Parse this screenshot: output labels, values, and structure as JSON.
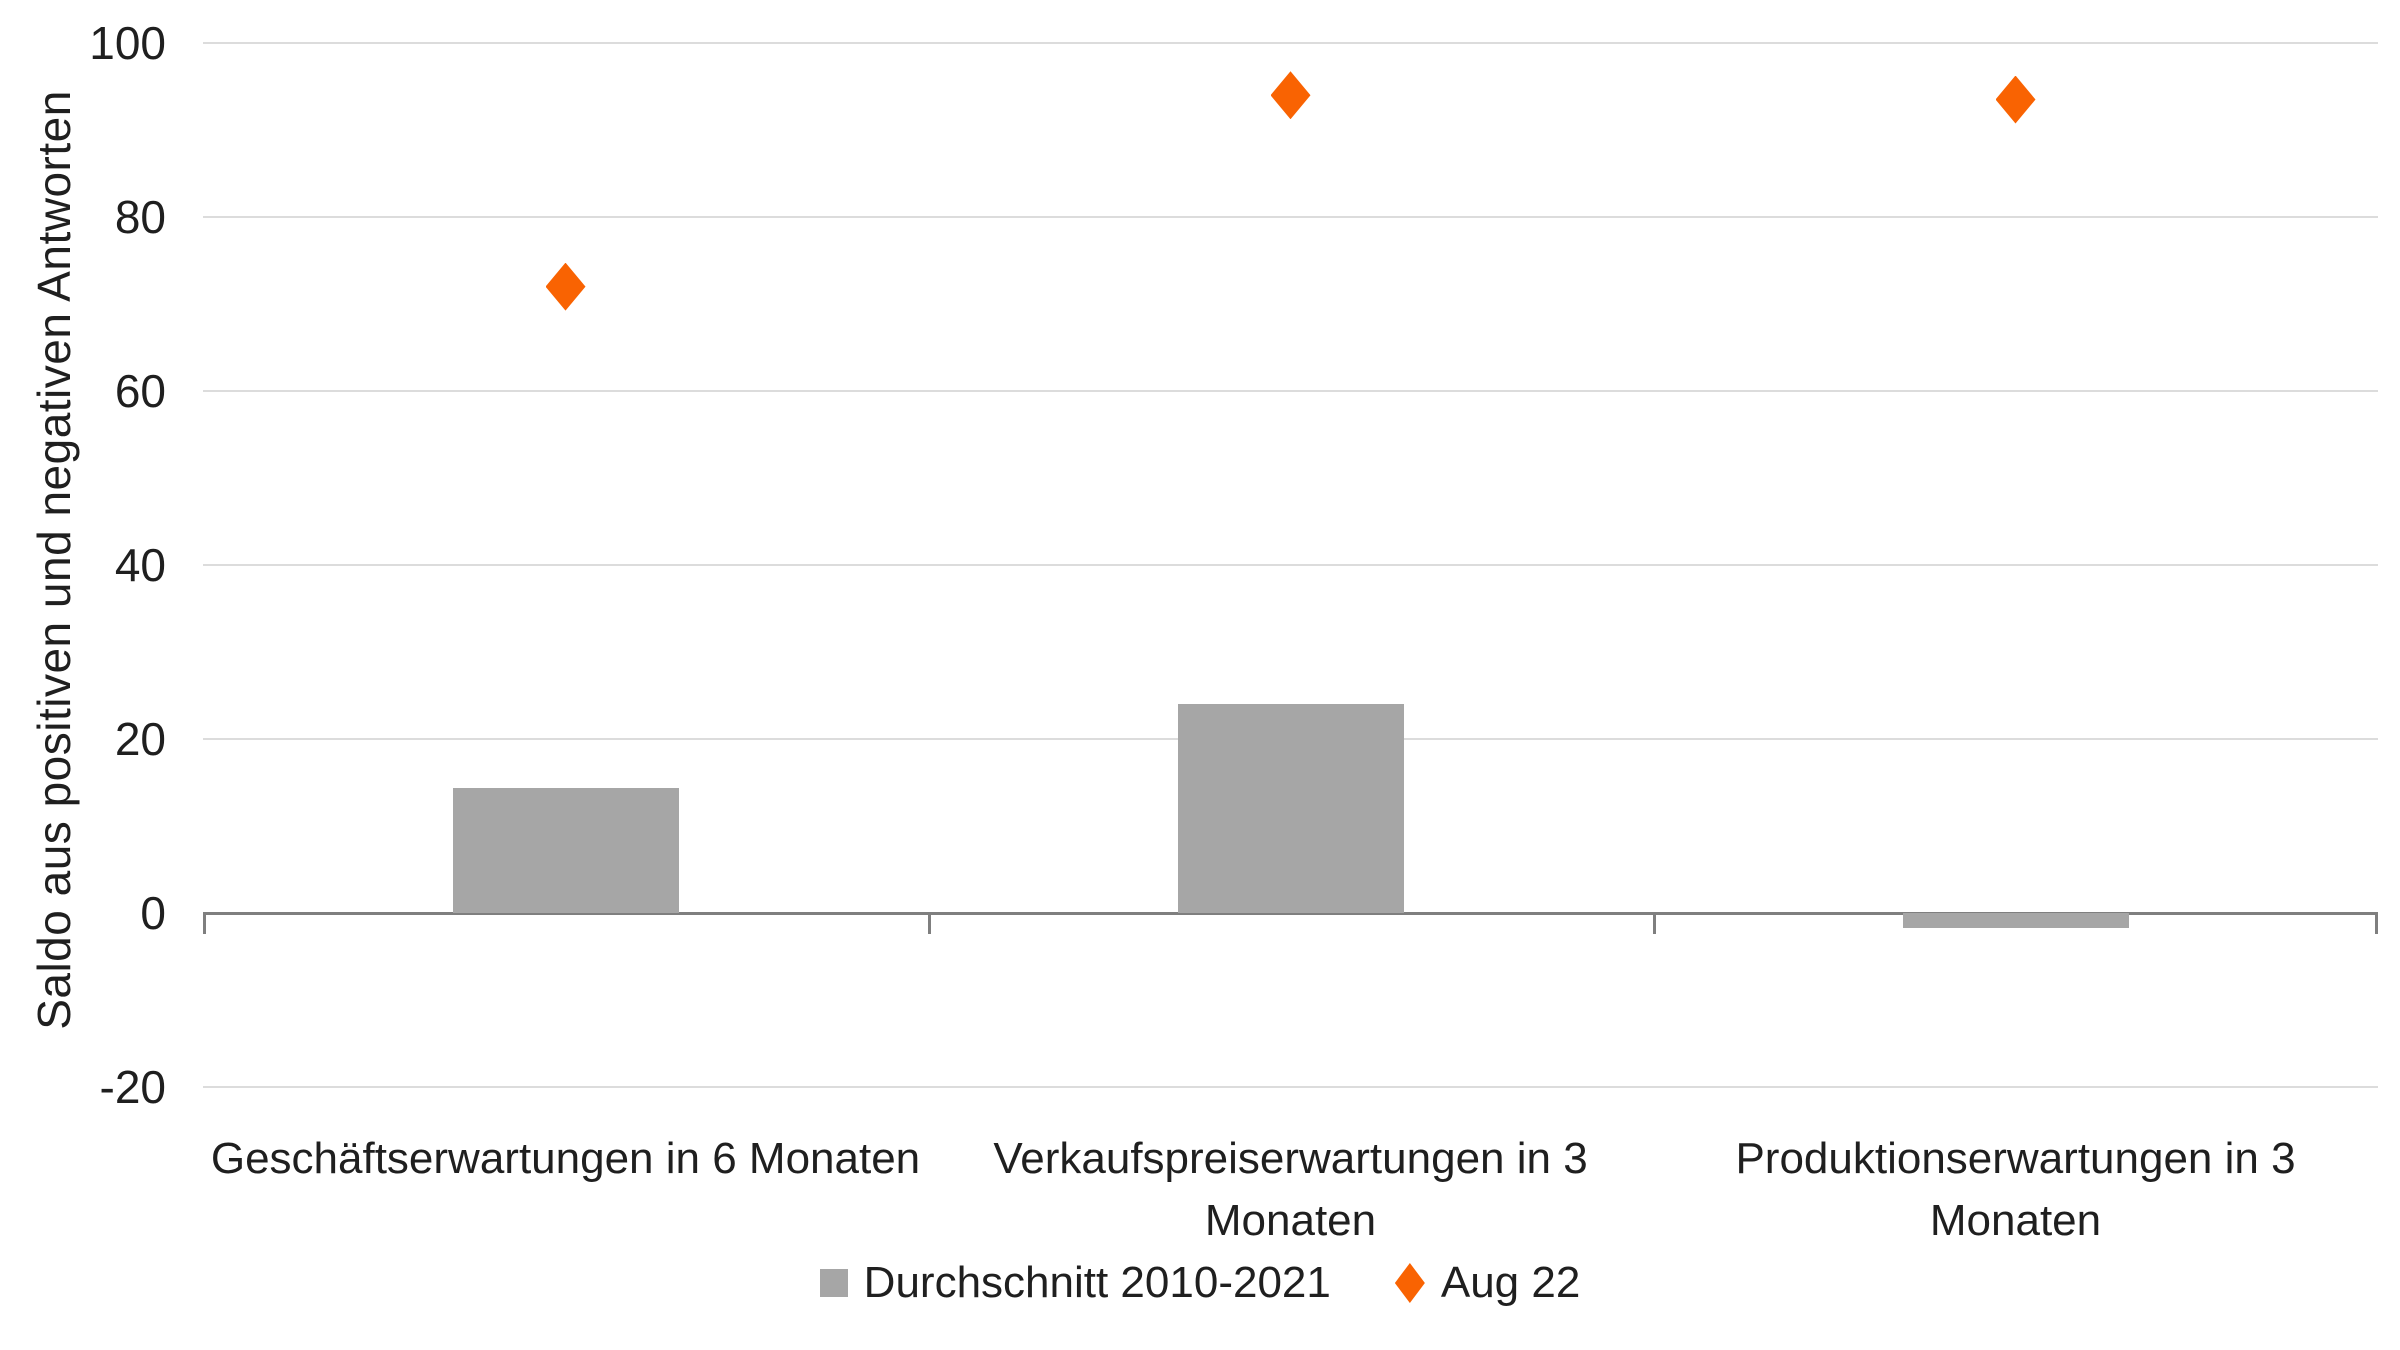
{
  "chart_data": {
    "type": "bar",
    "subtype": "bar-with-scatter-markers",
    "title": "",
    "xlabel": "",
    "ylabel": "Saldo aus positiven und negativen Antworten",
    "categories": [
      "Geschäftserwartungen in 6 Monaten",
      "Verkaufspreiserwartungen in 3 Monaten",
      "Produktionserwartungen in 3 Monaten"
    ],
    "category_lines": [
      [
        "Geschäftserwartungen in 6 Monaten"
      ],
      [
        "Verkaufspreiserwartungen in 3",
        "Monaten"
      ],
      [
        "Produktionserwartungen in 3",
        "Monaten"
      ]
    ],
    "series": [
      {
        "name": "Durchschnitt 2010-2021",
        "type": "bar",
        "marker": "square",
        "color": "#A6A6A6",
        "values": [
          14.4,
          24,
          -1.7
        ]
      },
      {
        "name": "Aug 22",
        "type": "scatter",
        "marker": "diamond",
        "color": "#F96302",
        "values": [
          72,
          94,
          93.5
        ]
      }
    ],
    "ylim": [
      -20,
      100
    ],
    "yticks": [
      100,
      80,
      60,
      40,
      20,
      0,
      -20
    ],
    "grid": true,
    "legend_position": "bottom"
  },
  "colors": {
    "bar_gray": "#A6A6A6",
    "marker_orange": "#F96302",
    "gridline": "#DCDCDC",
    "axis_line": "#7F7F7F",
    "text": "#1F1F1F",
    "background": "#FFFFFF"
  }
}
